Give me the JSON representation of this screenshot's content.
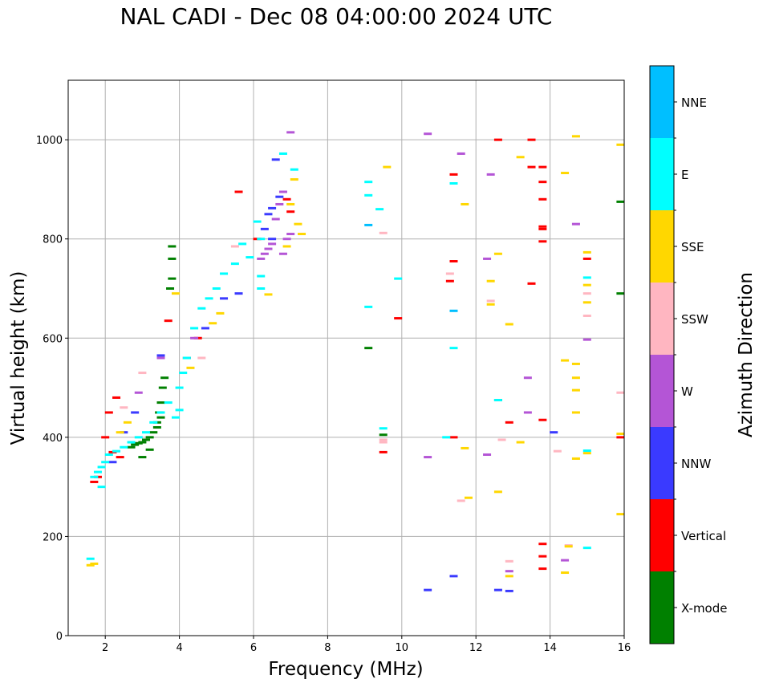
{
  "chart_data": {
    "type": "scatter",
    "title": "NAL CADI - Dec 08 04:00:00 2024 UTC",
    "xlabel": "Frequency (MHz)",
    "ylabel": "Virtual height (km)",
    "xlim": [
      1,
      16
    ],
    "ylim": [
      0,
      1120
    ],
    "xticks": [
      "2",
      "4",
      "6",
      "8",
      "10",
      "12",
      "14",
      "16"
    ],
    "yticks": [
      "0",
      "200",
      "400",
      "600",
      "800",
      "1000"
    ],
    "grid": true,
    "colorbar": {
      "label": "Azimuth Direction",
      "categories": [
        {
          "name": "X-mode",
          "color": "#008000"
        },
        {
          "name": "Vertical",
          "color": "#ff0000"
        },
        {
          "name": "NNW",
          "color": "#3a3aff"
        },
        {
          "name": "W",
          "color": "#b455d6"
        },
        {
          "name": "SSW",
          "color": "#ffb6c1"
        },
        {
          "name": "SSE",
          "color": "#ffd700"
        },
        {
          "name": "E",
          "color": "#00ffff"
        },
        {
          "name": "NNE",
          "color": "#00bfff"
        }
      ]
    },
    "series": [
      {
        "name": "X-mode",
        "points": [
          [
            3.8,
            785
          ],
          [
            3.8,
            760
          ],
          [
            3.8,
            720
          ],
          [
            3.75,
            700
          ],
          [
            3.6,
            520
          ],
          [
            3.55,
            500
          ],
          [
            3.5,
            470
          ],
          [
            3.45,
            450
          ],
          [
            3.4,
            430
          ],
          [
            3.3,
            410
          ],
          [
            3.2,
            400
          ],
          [
            3.1,
            395
          ],
          [
            3.0,
            390
          ],
          [
            2.9,
            388
          ],
          [
            2.8,
            385
          ],
          [
            2.7,
            380
          ],
          [
            3.0,
            360
          ],
          [
            3.2,
            375
          ],
          [
            3.4,
            420
          ],
          [
            3.5,
            440
          ],
          [
            9.1,
            580
          ],
          [
            15.9,
            875
          ],
          [
            15.9,
            690
          ],
          [
            12.6,
            475
          ],
          [
            9.5,
            405
          ]
        ]
      },
      {
        "name": "Vertical",
        "points": [
          [
            5.6,
            895
          ],
          [
            6.9,
            880
          ],
          [
            7.0,
            855
          ],
          [
            6.1,
            800
          ],
          [
            3.7,
            635
          ],
          [
            4.5,
            600
          ],
          [
            4.2,
            560
          ],
          [
            2.3,
            480
          ],
          [
            2.1,
            450
          ],
          [
            2.0,
            400
          ],
          [
            2.2,
            370
          ],
          [
            2.4,
            360
          ],
          [
            1.8,
            320
          ],
          [
            1.7,
            310
          ],
          [
            9.5,
            370
          ],
          [
            9.9,
            640
          ],
          [
            11.4,
            755
          ],
          [
            11.3,
            715
          ],
          [
            11.4,
            400
          ],
          [
            12.6,
            1000
          ],
          [
            13.5,
            1000
          ],
          [
            13.5,
            945
          ],
          [
            13.8,
            945
          ],
          [
            13.8,
            915
          ],
          [
            13.8,
            880
          ],
          [
            13.8,
            825
          ],
          [
            13.8,
            820
          ],
          [
            13.8,
            795
          ],
          [
            13.5,
            710
          ],
          [
            13.8,
            435
          ],
          [
            13.8,
            185
          ],
          [
            13.8,
            160
          ],
          [
            13.8,
            135
          ],
          [
            15.0,
            760
          ],
          [
            15.9,
            400
          ],
          [
            11.4,
            930
          ],
          [
            12.9,
            430
          ]
        ]
      },
      {
        "name": "NNW",
        "points": [
          [
            6.6,
            960
          ],
          [
            6.7,
            885
          ],
          [
            6.5,
            862
          ],
          [
            6.4,
            850
          ],
          [
            6.3,
            820
          ],
          [
            6.5,
            800
          ],
          [
            3.5,
            565
          ],
          [
            4.7,
            620
          ],
          [
            5.2,
            680
          ],
          [
            5.6,
            690
          ],
          [
            2.8,
            450
          ],
          [
            2.5,
            410
          ],
          [
            2.2,
            350
          ],
          [
            11.4,
            120
          ],
          [
            12.6,
            92
          ],
          [
            12.9,
            90
          ],
          [
            14.1,
            410
          ],
          [
            10.7,
            92
          ]
        ]
      },
      {
        "name": "W",
        "points": [
          [
            7.0,
            1015
          ],
          [
            6.8,
            895
          ],
          [
            6.7,
            870
          ],
          [
            6.6,
            840
          ],
          [
            6.5,
            790
          ],
          [
            6.4,
            780
          ],
          [
            6.3,
            770
          ],
          [
            6.2,
            760
          ],
          [
            6.8,
            770
          ],
          [
            7.0,
            810
          ],
          [
            6.9,
            800
          ],
          [
            3.5,
            560
          ],
          [
            4.4,
            600
          ],
          [
            2.9,
            490
          ],
          [
            10.7,
            1012
          ],
          [
            11.6,
            972
          ],
          [
            12.4,
            930
          ],
          [
            12.3,
            760
          ],
          [
            13.4,
            520
          ],
          [
            13.4,
            450
          ],
          [
            14.7,
            830
          ],
          [
            15.0,
            597
          ],
          [
            12.3,
            365
          ],
          [
            10.7,
            360
          ],
          [
            12.9,
            130
          ],
          [
            14.4,
            152
          ]
        ]
      },
      {
        "name": "SSW",
        "points": [
          [
            5.5,
            785
          ],
          [
            4.6,
            560
          ],
          [
            3.0,
            530
          ],
          [
            2.5,
            460
          ],
          [
            9.5,
            812
          ],
          [
            9.5,
            395
          ],
          [
            9.5,
            390
          ],
          [
            11.3,
            730
          ],
          [
            12.4,
            675
          ],
          [
            12.7,
            395
          ],
          [
            11.6,
            272
          ],
          [
            12.9,
            150
          ],
          [
            14.2,
            372
          ],
          [
            14.5,
            182
          ],
          [
            15.0,
            690
          ],
          [
            15.0,
            645
          ],
          [
            15.9,
            490
          ]
        ]
      },
      {
        "name": "SSE",
        "points": [
          [
            7.1,
            920
          ],
          [
            7.0,
            870
          ],
          [
            7.2,
            830
          ],
          [
            7.3,
            810
          ],
          [
            6.9,
            785
          ],
          [
            6.4,
            688
          ],
          [
            5.1,
            650
          ],
          [
            4.9,
            630
          ],
          [
            3.9,
            690
          ],
          [
            4.3,
            540
          ],
          [
            2.6,
            430
          ],
          [
            2.4,
            410
          ],
          [
            1.7,
            145
          ],
          [
            1.6,
            142
          ],
          [
            9.6,
            945
          ],
          [
            11.7,
            870
          ],
          [
            12.4,
            715
          ],
          [
            12.4,
            668
          ],
          [
            12.6,
            770
          ],
          [
            12.6,
            290
          ],
          [
            12.9,
            628
          ],
          [
            13.2,
            965
          ],
          [
            13.2,
            390
          ],
          [
            11.7,
            378
          ],
          [
            11.8,
            278
          ],
          [
            12.9,
            120
          ],
          [
            14.4,
            933
          ],
          [
            14.7,
            1007
          ],
          [
            14.4,
            555
          ],
          [
            14.7,
            548
          ],
          [
            14.7,
            520
          ],
          [
            14.7,
            495
          ],
          [
            14.7,
            450
          ],
          [
            14.7,
            357
          ],
          [
            14.4,
            127
          ],
          [
            14.5,
            180
          ],
          [
            15.0,
            773
          ],
          [
            15.0,
            707
          ],
          [
            15.0,
            672
          ],
          [
            15.0,
            368
          ],
          [
            15.9,
            990
          ],
          [
            15.9,
            407
          ],
          [
            15.9,
            245
          ]
        ]
      },
      {
        "name": "E",
        "points": [
          [
            7.1,
            940
          ],
          [
            6.8,
            972
          ],
          [
            6.1,
            835
          ],
          [
            6.2,
            800
          ],
          [
            6.2,
            725
          ],
          [
            6.2,
            700
          ],
          [
            5.9,
            763
          ],
          [
            5.7,
            790
          ],
          [
            5.5,
            750
          ],
          [
            5.2,
            730
          ],
          [
            5.0,
            700
          ],
          [
            4.8,
            680
          ],
          [
            4.6,
            660
          ],
          [
            4.4,
            620
          ],
          [
            4.2,
            560
          ],
          [
            4.1,
            530
          ],
          [
            4.0,
            500
          ],
          [
            4.0,
            455
          ],
          [
            3.9,
            440
          ],
          [
            3.7,
            470
          ],
          [
            3.5,
            450
          ],
          [
            3.3,
            430
          ],
          [
            3.1,
            410
          ],
          [
            2.9,
            400
          ],
          [
            2.7,
            390
          ],
          [
            2.5,
            380
          ],
          [
            2.3,
            372
          ],
          [
            2.1,
            365
          ],
          [
            2.0,
            350
          ],
          [
            1.9,
            340
          ],
          [
            1.8,
            330
          ],
          [
            1.7,
            320
          ],
          [
            1.9,
            300
          ],
          [
            9.1,
            915
          ],
          [
            9.1,
            888
          ],
          [
            9.4,
            860
          ],
          [
            9.1,
            663
          ],
          [
            9.9,
            720
          ],
          [
            11.4,
            912
          ],
          [
            11.2,
            400
          ],
          [
            11.4,
            580
          ],
          [
            12.6,
            475
          ],
          [
            15.0,
            722
          ],
          [
            15.0,
            373
          ],
          [
            15.0,
            177
          ],
          [
            9.5,
            418
          ],
          [
            1.6,
            155
          ]
        ]
      },
      {
        "name": "NNE",
        "points": [
          [
            9.1,
            828
          ],
          [
            11.4,
            655
          ]
        ]
      }
    ]
  }
}
